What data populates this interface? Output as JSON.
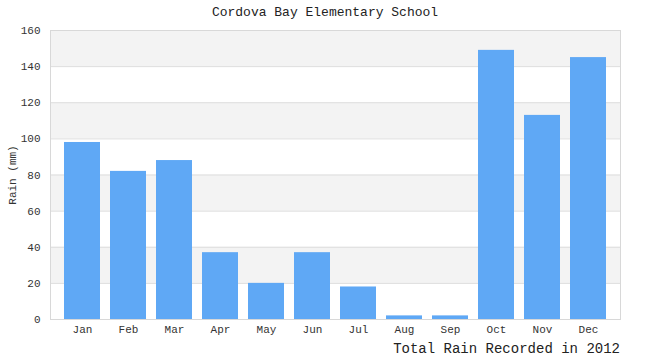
{
  "chart_data": {
    "type": "bar",
    "title": "Cordova Bay Elementary School",
    "x_label": "Total Rain Recorded in 2012",
    "y_label": "Rain (mm)",
    "categories": [
      "Jan",
      "Feb",
      "Mar",
      "Apr",
      "May",
      "Jun",
      "Jul",
      "Aug",
      "Sep",
      "Oct",
      "Nov",
      "Dec"
    ],
    "values": [
      98,
      82,
      88,
      37,
      20,
      37,
      18,
      2,
      2,
      149,
      113,
      145
    ],
    "color": "#5fa8f5",
    "ylim": [
      0,
      160
    ],
    "yticks": [
      0,
      20,
      40,
      60,
      80,
      100,
      120,
      140,
      160
    ],
    "grid": true
  }
}
